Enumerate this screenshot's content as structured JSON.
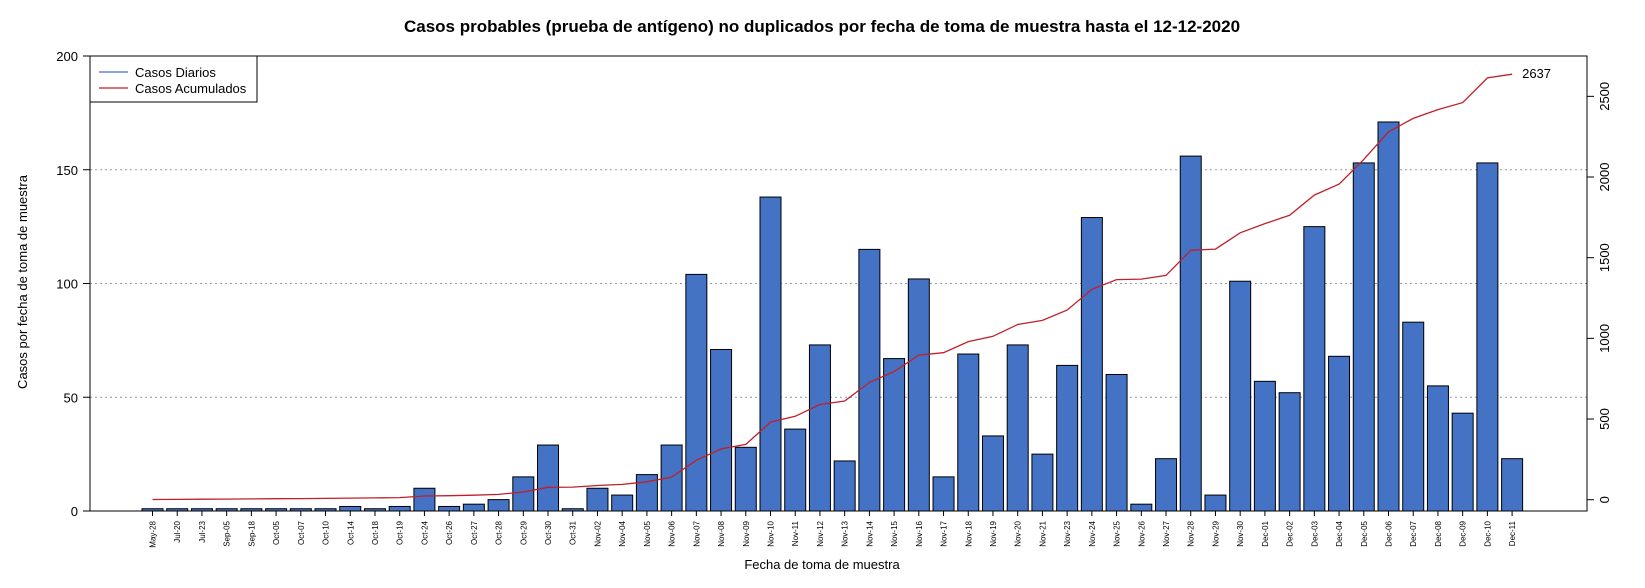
{
  "chart_data": {
    "type": "bar",
    "title": "Casos probables (prueba de antígeno) no duplicados por fecha de toma de muestra hasta el 12-12-2020",
    "xlabel": "Fecha de toma de muestra",
    "ylabel": "Casos por fecha de toma de muestra",
    "ylim": [
      0,
      200
    ],
    "y_ticks": [
      0,
      50,
      100,
      150,
      200
    ],
    "y2lim": [
      -70,
      2750
    ],
    "y2_ticks": [
      0,
      500,
      1000,
      1500,
      2000,
      2500
    ],
    "grid": "horizontal dotted",
    "legend_position": "top-left",
    "bar_color": "#4472C4",
    "line_color": "#C0202A",
    "categories": [
      "May-28",
      "Jul-20",
      "Jul-23",
      "Sep-05",
      "Sep-18",
      "Oct-05",
      "Oct-07",
      "Oct-10",
      "Oct-14",
      "Oct-18",
      "Oct-19",
      "Oct-24",
      "Oct-26",
      "Oct-27",
      "Oct-28",
      "Oct-29",
      "Oct-30",
      "Oct-31",
      "Nov-02",
      "Nov-04",
      "Nov-05",
      "Nov-06",
      "Nov-07",
      "Nov-08",
      "Nov-09",
      "Nov-10",
      "Nov-11",
      "Nov-12",
      "Nov-13",
      "Nov-14",
      "Nov-15",
      "Nov-16",
      "Nov-17",
      "Nov-18",
      "Nov-19",
      "Nov-20",
      "Nov-21",
      "Nov-23",
      "Nov-24",
      "Nov-25",
      "Nov-26",
      "Nov-27",
      "Nov-28",
      "Nov-29",
      "Nov-30",
      "Dec-01",
      "Dec-02",
      "Dec-03",
      "Dec-04",
      "Dec-05",
      "Dec-06",
      "Dec-07",
      "Dec-08",
      "Dec-09",
      "Dec-10",
      "Dec-11"
    ],
    "series": [
      {
        "name": "Casos Diarios",
        "values": [
          1,
          1,
          1,
          1,
          1,
          1,
          1,
          1,
          2,
          1,
          2,
          10,
          2,
          3,
          5,
          15,
          29,
          1,
          10,
          7,
          16,
          29,
          104,
          71,
          28,
          138,
          36,
          73,
          22,
          115,
          67,
          102,
          15,
          69,
          33,
          73,
          25,
          64,
          129,
          60,
          3,
          23,
          156,
          7,
          101,
          57,
          52,
          125,
          68,
          153,
          171,
          83,
          55,
          43,
          153,
          23
        ]
      },
      {
        "name": "Casos Acumulados",
        "values": [
          1,
          2,
          3,
          4,
          5,
          6,
          7,
          8,
          10,
          11,
          13,
          23,
          25,
          28,
          33,
          48,
          77,
          78,
          88,
          95,
          111,
          140,
          244,
          315,
          343,
          481,
          517,
          590,
          612,
          727,
          794,
          896,
          911,
          980,
          1013,
          1086,
          1111,
          1175,
          1304,
          1364,
          1367,
          1390,
          1546,
          1553,
          1654,
          1711,
          1763,
          1888,
          1956,
          2109,
          2280,
          2363,
          2418,
          2461,
          2614,
          2637
        ]
      }
    ],
    "annotations": [
      {
        "text": "2637",
        "series": "Casos Acumulados",
        "at": "last-point"
      }
    ]
  }
}
